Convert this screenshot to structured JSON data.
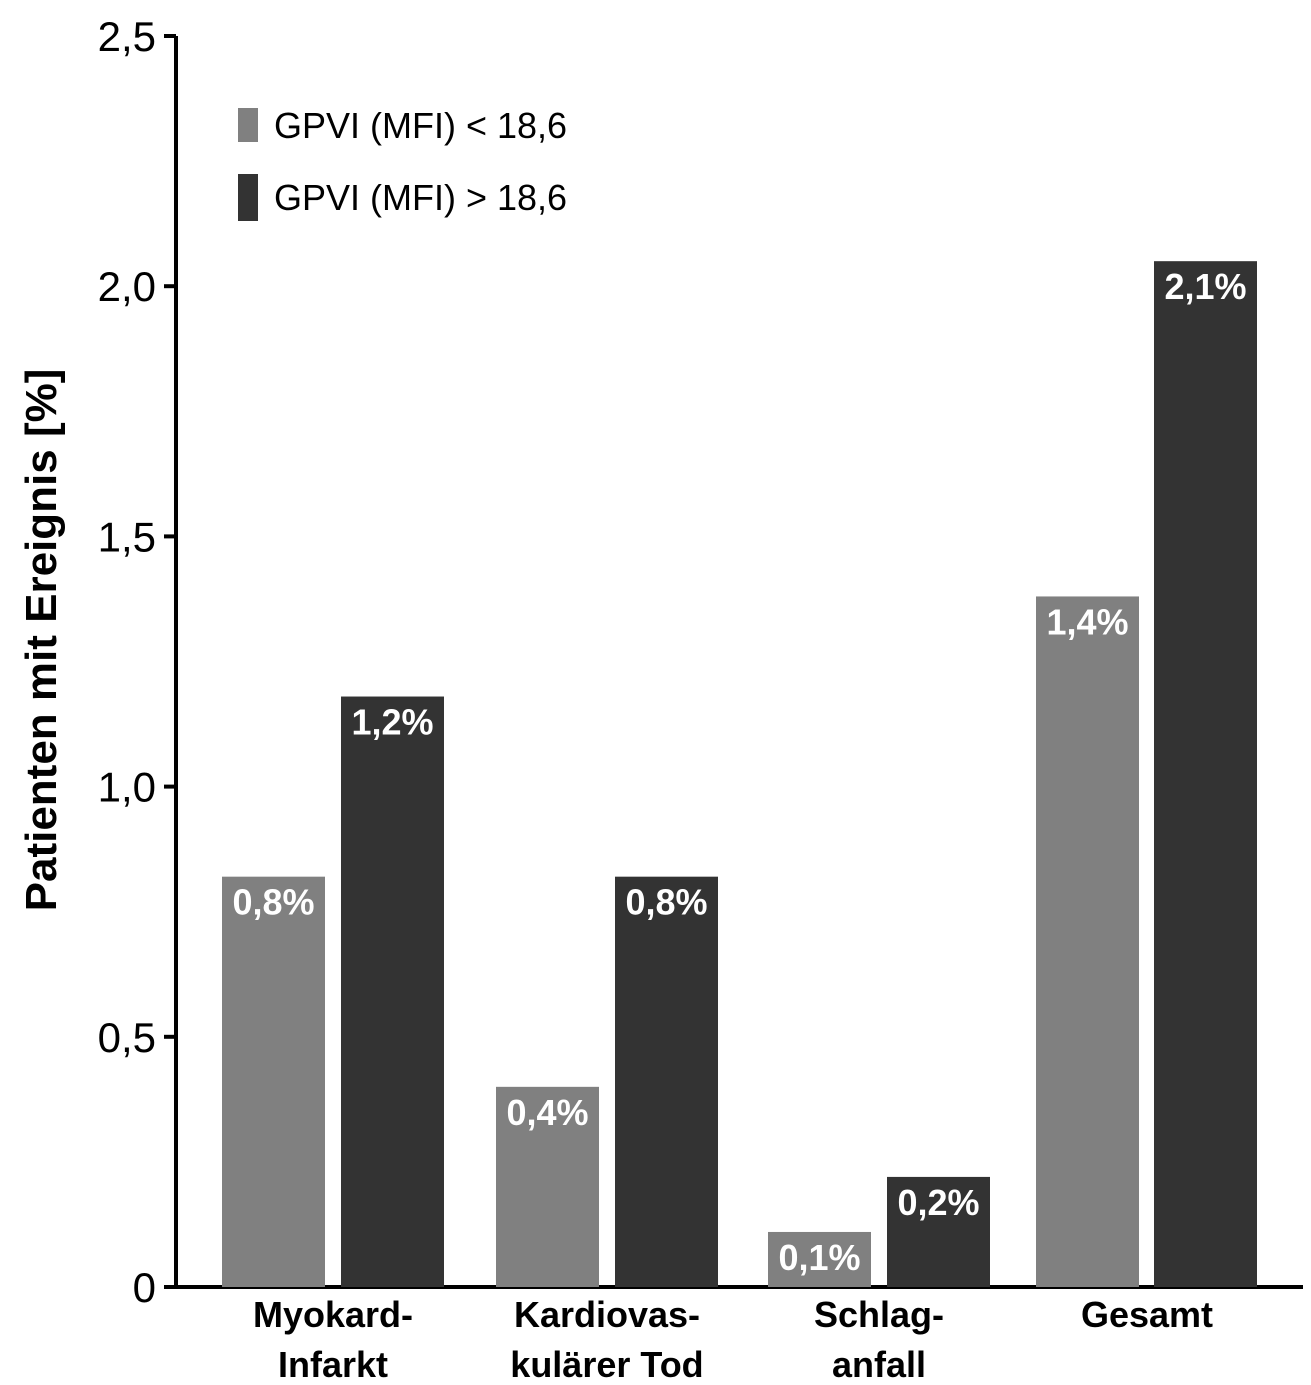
{
  "chart_data": {
    "type": "bar",
    "title": "",
    "xlabel": "",
    "ylabel": "Patienten mit Ereignis [%]",
    "ylim": [
      0,
      2.5
    ],
    "yticks": [
      0,
      0.5,
      1.0,
      1.5,
      2.0,
      2.5
    ],
    "ytick_labels": [
      "0",
      "0,5",
      "1,0",
      "1,5",
      "2,0",
      "2,5"
    ],
    "categories": [
      [
        "Myokard-",
        "Infarkt"
      ],
      [
        "Kardiovas-",
        "kulärer Tod"
      ],
      [
        "Schlag-",
        "anfall"
      ],
      [
        "Gesamt"
      ]
    ],
    "series": [
      {
        "name": "GPVI (MFI) < 18,6",
        "color": "#808080",
        "values": [
          0.82,
          0.4,
          0.11,
          1.38
        ],
        "labels": [
          "0,8%",
          "0,4%",
          "0,1%",
          "1,4%"
        ]
      },
      {
        "name": "GPVI (MFI) > 18,6",
        "color": "#333333",
        "values": [
          1.18,
          0.82,
          0.22,
          2.05
        ],
        "labels": [
          "1,2%",
          "0,8%",
          "0,2%",
          "2,1%"
        ]
      }
    ],
    "grid": false,
    "legend_position": "top-left"
  }
}
